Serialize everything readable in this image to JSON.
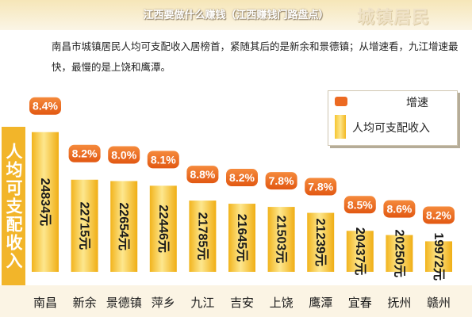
{
  "banner": {
    "title": "江西要做什么赚钱（江西赚钱门路盘点）",
    "watermark": "城镇居民"
  },
  "description": "南昌市城镇居民人均可支配收入居榜首，紧随其后的是新余和景德镇；从增速看，九江增速最快，最慢的是上饶和鹰潭。",
  "colors": {
    "bar": "#f6c630",
    "growth_tag": "#ec6a22",
    "side_tab": "#f2b52a"
  },
  "chart_data": {
    "type": "bar",
    "title": "",
    "ylabel": "人均可支配收入",
    "unit": "元",
    "categories": [
      "南昌",
      "新余",
      "景德镇",
      "萍乡",
      "九江",
      "吉安",
      "上饶",
      "鹰潭",
      "宜春",
      "抚州",
      "赣州"
    ],
    "series": [
      {
        "name": "人均可支配收入",
        "values": [
          24834,
          22715,
          22654,
          22446,
          21785,
          21645,
          21503,
          21239,
          20437,
          20250,
          19972
        ],
        "value_labels": [
          "24834元",
          "22715元",
          "22654元",
          "22446元",
          "21785元",
          "21645元",
          "21503元",
          "21239元",
          "20437元",
          "20250元",
          "19972元"
        ]
      },
      {
        "name": "增速",
        "values": [
          8.4,
          8.2,
          8.0,
          8.1,
          8.8,
          8.2,
          7.8,
          7.8,
          8.5,
          8.6,
          8.2
        ],
        "value_labels": [
          "8.4%",
          "8.2%",
          "8.0%",
          "8.1%",
          "8.8%",
          "8.2%",
          "7.8%",
          "7.8%",
          "8.5%",
          "8.6%",
          "8.2%"
        ]
      }
    ],
    "legend": {
      "position": "top-right",
      "items": [
        {
          "name": "增速",
          "shape": "rounded-rect"
        },
        {
          "name": "人均可支配收入",
          "shape": "bar"
        }
      ]
    },
    "grid": false
  }
}
